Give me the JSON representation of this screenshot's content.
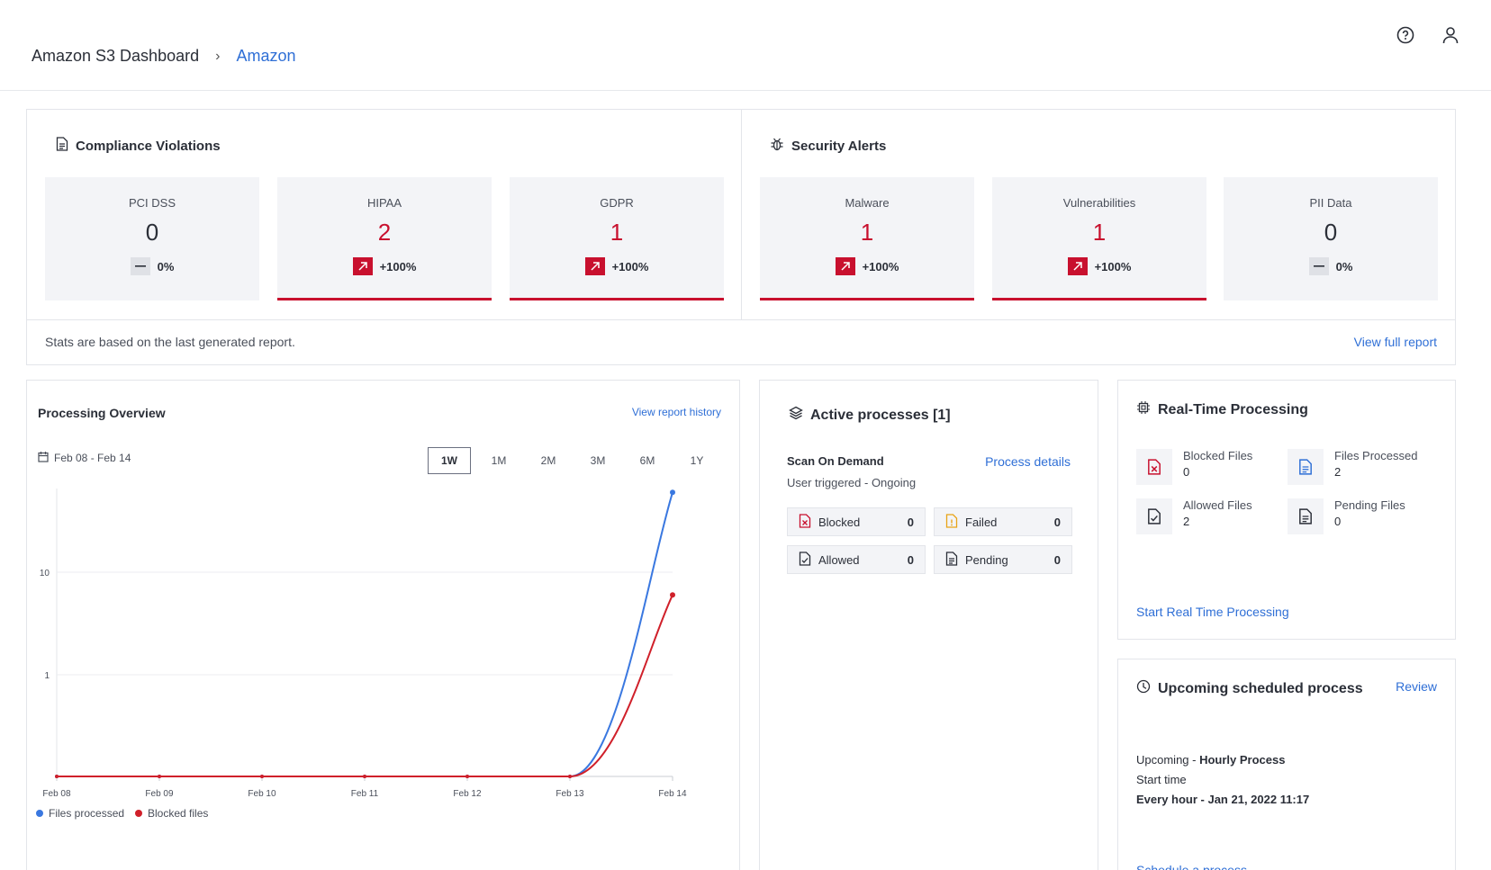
{
  "header": {
    "breadcrumb_root": "Amazon S3 Dashboard",
    "breadcrumb_leaf": "Amazon"
  },
  "compliance": {
    "title": "Compliance Violations",
    "tiles": [
      {
        "label": "PCI DSS",
        "value": "0",
        "change": "0%",
        "trend": "neutral"
      },
      {
        "label": "HIPAA",
        "value": "2",
        "change": "+100%",
        "trend": "up"
      },
      {
        "label": "GDPR",
        "value": "1",
        "change": "+100%",
        "trend": "up"
      }
    ]
  },
  "security": {
    "title": "Security Alerts",
    "tiles": [
      {
        "label": "Malware",
        "value": "1",
        "change": "+100%",
        "trend": "up"
      },
      {
        "label": "Vulnerabilities",
        "value": "1",
        "change": "+100%",
        "trend": "up"
      },
      {
        "label": "PII Data",
        "value": "0",
        "change": "0%",
        "trend": "neutral"
      }
    ]
  },
  "stats_footer": {
    "note": "Stats are based on the last generated report.",
    "link": "View full report"
  },
  "processing": {
    "title": "Processing Overview",
    "history_link": "View report history",
    "date_range": "Feb 08 - Feb 14",
    "ranges": [
      "1W",
      "1M",
      "2M",
      "3M",
      "6M",
      "1Y"
    ],
    "active_range": "1W",
    "legend": [
      "Files processed",
      "Blocked files"
    ]
  },
  "chart_data": {
    "type": "line",
    "x": [
      "Feb 08",
      "Feb 09",
      "Feb 10",
      "Feb 11",
      "Feb 12",
      "Feb 13",
      "Feb 14"
    ],
    "y_scale": "log",
    "y_ticks": [
      "10",
      "1"
    ],
    "series": [
      {
        "name": "Files processed",
        "color": "#3a78e0",
        "values": [
          0,
          0,
          0,
          0,
          0,
          0,
          60
        ]
      },
      {
        "name": "Blocked files",
        "color": "#d0202a",
        "values": [
          0,
          0,
          0,
          0,
          0,
          0,
          6
        ]
      }
    ],
    "grid": true,
    "legend_position": "bottom-left"
  },
  "active": {
    "title": "Active processes [1]",
    "process_name": "Scan On Demand",
    "details_link": "Process details",
    "status_prefix": "User triggered -",
    "status": "Ongoing",
    "stats": [
      {
        "label": "Blocked",
        "value": "0",
        "icon": "file-x-icon"
      },
      {
        "label": "Failed",
        "value": "0",
        "icon": "file-alert-icon"
      },
      {
        "label": "Allowed",
        "value": "0",
        "icon": "file-check-icon"
      },
      {
        "label": "Pending",
        "value": "0",
        "icon": "file-pending-icon"
      }
    ]
  },
  "realtime": {
    "title": "Real-Time Processing",
    "items": [
      {
        "label": "Blocked Files",
        "value": "0"
      },
      {
        "label": "Files Processed",
        "value": "2"
      },
      {
        "label": "Allowed Files",
        "value": "2"
      },
      {
        "label": "Pending Files",
        "value": "0"
      }
    ],
    "start_link": "Start Real Time Processing"
  },
  "upcoming": {
    "title": "Upcoming scheduled process",
    "review": "Review",
    "prefix": "Upcoming -",
    "process": "Hourly Process",
    "start_label": "Start time",
    "schedule": "Every hour - Jan 21, 2022 11:17",
    "schedule_link": "Schedule a process"
  },
  "colors": {
    "accent": "#2f6fd6",
    "alert": "#c8102e",
    "tile_bg": "#f3f4f7"
  }
}
